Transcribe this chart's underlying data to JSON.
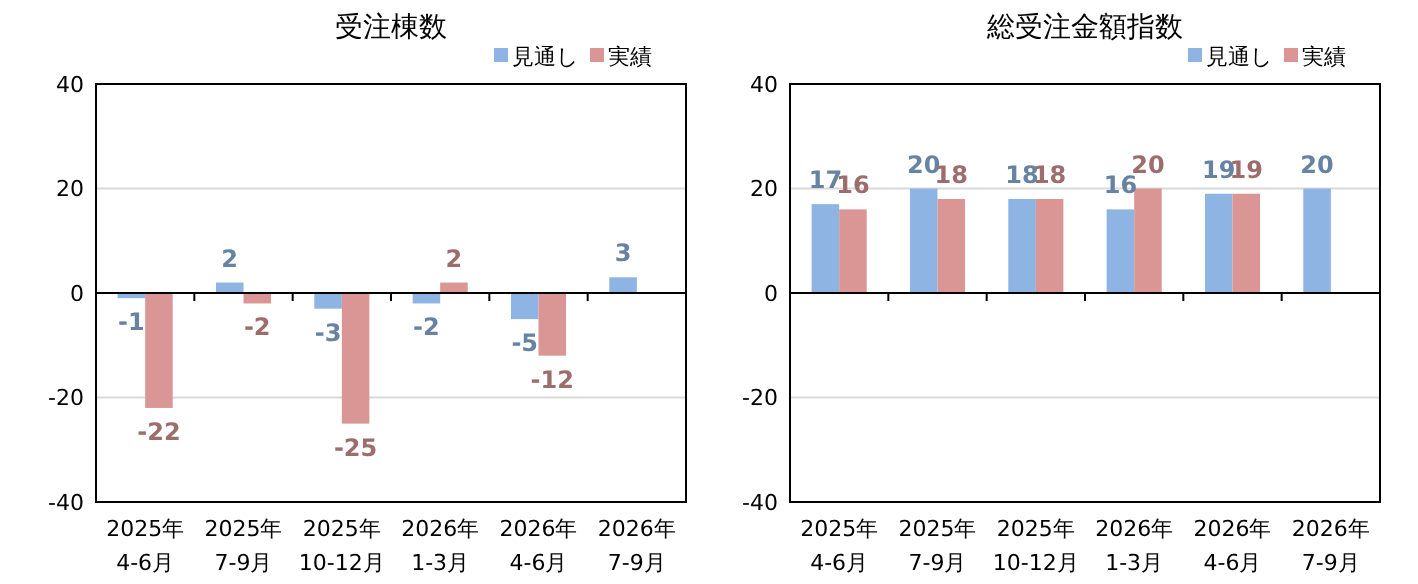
{
  "chart_data": [
    {
      "type": "bar",
      "title": "受注棟数",
      "categories": [
        "2025年\n4-6月",
        "2025年\n7-9月",
        "2025年\n10-12月",
        "2026年\n1-3月",
        "2026年\n4-6月",
        "2026年\n7-9月"
      ],
      "series": [
        {
          "name": "見通し",
          "color": "#8db4e2",
          "values": [
            -1,
            2,
            -3,
            -2,
            -5,
            3
          ]
        },
        {
          "name": "実績",
          "color": "#d99694",
          "values": [
            -22,
            -2,
            -25,
            2,
            -12,
            null
          ]
        }
      ],
      "ylim": [
        -40,
        40
      ],
      "yticks": [
        -40,
        -20,
        0,
        20,
        40
      ],
      "grid": "y",
      "legend": "top right",
      "data_labels": true
    },
    {
      "type": "bar",
      "title": "総受注金額指数",
      "categories": [
        "2025年\n4-6月",
        "2025年\n7-9月",
        "2025年\n10-12月",
        "2026年\n1-3月",
        "2026年\n4-6月",
        "2026年\n7-9月"
      ],
      "series": [
        {
          "name": "見通し",
          "color": "#8db4e2",
          "values": [
            17,
            20,
            18,
            16,
            19,
            20
          ]
        },
        {
          "name": "実績",
          "color": "#d99694",
          "values": [
            16,
            18,
            18,
            20,
            19,
            null
          ]
        }
      ],
      "ylim": [
        -40,
        40
      ],
      "yticks": [
        -40,
        -20,
        0,
        20,
        40
      ],
      "grid": "y",
      "legend": "top right",
      "data_labels": true
    }
  ]
}
